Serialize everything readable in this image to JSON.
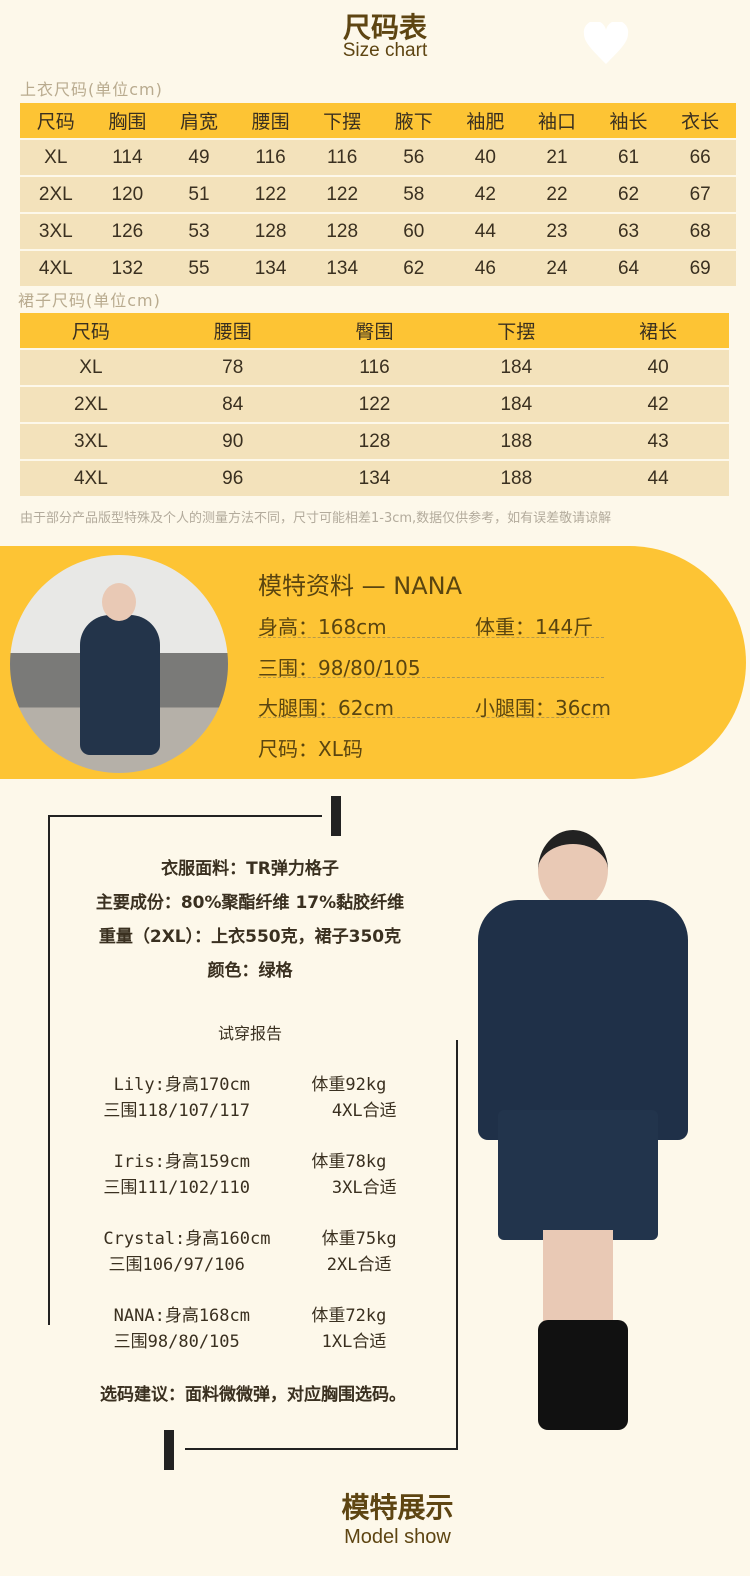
{
  "header": {
    "title": "尺码表",
    "subtitle": "Size chart",
    "icon": "heart-icon"
  },
  "top_chart": {
    "label": "上衣尺码(单位cm)",
    "columns": [
      "尺码",
      "胸围",
      "肩宽",
      "腰围",
      "下摆",
      "腋下",
      "袖肥",
      "袖口",
      "袖长",
      "衣长"
    ],
    "rows": [
      [
        "XL",
        "114",
        "49",
        "116",
        "116",
        "56",
        "40",
        "21",
        "61",
        "66"
      ],
      [
        "2XL",
        "120",
        "51",
        "122",
        "122",
        "58",
        "42",
        "22",
        "62",
        "67"
      ],
      [
        "3XL",
        "126",
        "53",
        "128",
        "128",
        "60",
        "44",
        "23",
        "63",
        "68"
      ],
      [
        "4XL",
        "132",
        "55",
        "134",
        "134",
        "62",
        "46",
        "24",
        "64",
        "69"
      ]
    ]
  },
  "skirt_chart": {
    "label": "裙子尺码(单位cm)",
    "columns": [
      "尺码",
      "腰围",
      "臀围",
      "下摆",
      "裙长"
    ],
    "rows": [
      [
        "XL",
        "78",
        "116",
        "184",
        "40"
      ],
      [
        "2XL",
        "84",
        "122",
        "184",
        "42"
      ],
      [
        "3XL",
        "90",
        "128",
        "188",
        "43"
      ],
      [
        "4XL",
        "96",
        "134",
        "188",
        "44"
      ]
    ]
  },
  "note": "由于部分产品版型特殊及个人的测量方法不同，尺寸可能相差1-3cm,数据仅供参考，如有误差敬请谅解",
  "model": {
    "title": "模特资料 — NANA",
    "height": "身高：168cm",
    "weight": "体重：144斤",
    "measurements": "三围：98/80/105",
    "thigh": "大腿围：62cm",
    "calf": "小腿围：36cm",
    "size": "尺码：XL码"
  },
  "fabric": {
    "material": "衣服面料：TR弹力格子",
    "composition": "主要成份：80%聚酯纤维  17%黏胶纤维",
    "weight": "重量（2XL）：上衣550克，裙子350克",
    "color": "颜色：绿格",
    "report_title": "试穿报告",
    "reports": [
      {
        "line1": "Lily:身高170cm      体重92kg",
        "line2": "三围118/107/117        4XL合适"
      },
      {
        "line1": "Iris:身高159cm      体重78kg",
        "line2": "三围111/102/110        3XL合适"
      },
      {
        "line1": "Crystal:身高160cm     体重75kg",
        "line2": "三围106/97/106        2XL合适"
      },
      {
        "line1": "NANA:身高168cm      体重72kg",
        "line2": "三围98/80/105        1XL合适"
      }
    ],
    "advice": "选码建议：面料微微弹，对应胸围选码。"
  },
  "footer": {
    "title": "模特展示",
    "subtitle": "Model show"
  }
}
